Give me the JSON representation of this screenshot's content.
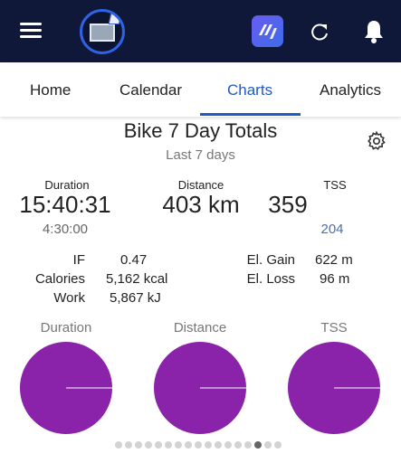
{
  "header": {
    "icons": [
      "menu-icon",
      "avatar",
      "app-logo",
      "refresh-icon",
      "bell-icon"
    ],
    "background": "#0f1838"
  },
  "tabs": [
    {
      "label": "Home"
    },
    {
      "label": "Calendar"
    },
    {
      "label": "Charts",
      "active": true
    },
    {
      "label": "Analytics"
    }
  ],
  "accent": "#2058c7",
  "card": {
    "title": "Bike 7 Day Totals",
    "subtitle": "Last 7 days",
    "stats": {
      "duration": {
        "label": "Duration",
        "value": "15:40:31",
        "sub": "4:30:00"
      },
      "distance": {
        "label": "Distance",
        "value": "403 km"
      },
      "tss": {
        "label": "TSS",
        "value": "359",
        "sub": "204"
      }
    },
    "details_left": [
      {
        "key": "IF",
        "value": "0.47"
      },
      {
        "key": "Calories",
        "value": "5,162 kcal"
      },
      {
        "key": "Work",
        "value": "5,867 kJ"
      }
    ],
    "details_right": [
      {
        "key": "El. Gain",
        "value": "622 m"
      },
      {
        "key": "El. Loss",
        "value": "96 m"
      }
    ],
    "pies": [
      {
        "label": "Duration",
        "fraction": 1.0
      },
      {
        "label": "Distance",
        "fraction": 1.0
      },
      {
        "label": "TSS",
        "fraction": 1.0
      }
    ],
    "pie_color": "#8a22aa"
  },
  "pager": {
    "count": 17,
    "active_index": 14
  }
}
